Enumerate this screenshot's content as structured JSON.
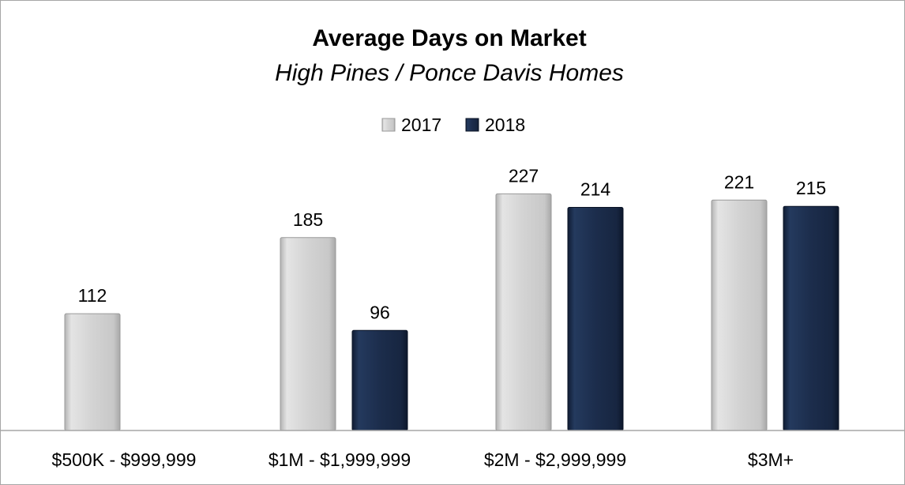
{
  "chart_data": {
    "type": "bar",
    "title": "Average Days on Market",
    "subtitle": "High Pines / Ponce Davis Homes",
    "categories": [
      "$500K - $999,999",
      "$1M - $1,999,999",
      "$2M - $2,999,999",
      "$3M+"
    ],
    "series": [
      {
        "name": "2017",
        "values": [
          112,
          185,
          227,
          221
        ],
        "color": "#d0d0d0"
      },
      {
        "name": "2018",
        "values": [
          null,
          96,
          214,
          215
        ],
        "color": "#1c2d4c"
      }
    ],
    "xlabel": "",
    "ylabel": "",
    "ylim": [
      0,
      236
    ],
    "grid": false,
    "legend": "top-center",
    "data_labels": true
  }
}
